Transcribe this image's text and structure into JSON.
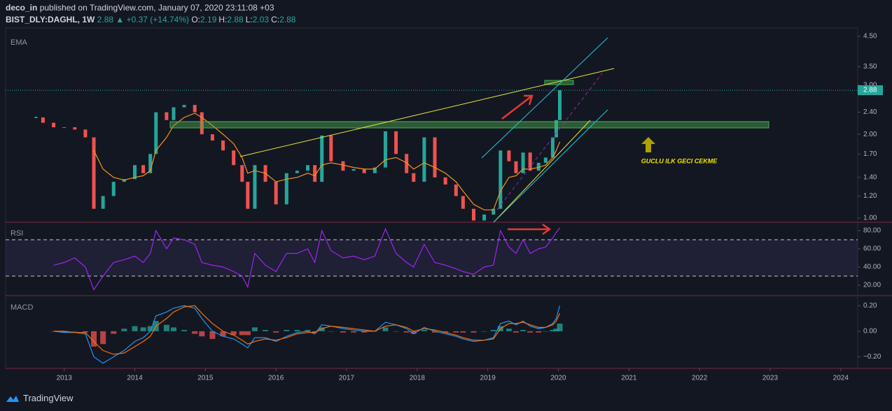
{
  "header": {
    "author": "deco_in",
    "published": "published on TradingView.com, January 07, 2020 23:11:08 +03",
    "symbol": "BIST_DLY:DAGHL, 1W",
    "last": "2.88",
    "change": "▲ +0.37 (+14.74%)",
    "ohlc": [
      "O:",
      "2.19",
      "H:",
      "2.88",
      "L:",
      "2.03",
      "C:",
      "2.88"
    ]
  },
  "footer": "TradingView",
  "chart_data": [
    {
      "type": "candlestick",
      "label": "EMA",
      "log": true,
      "x": [
        2012.6,
        2012.7,
        2012.85,
        2013.0,
        2013.15,
        2013.3,
        2013.42,
        2013.55,
        2013.7,
        2013.85,
        2014.0,
        2014.12,
        2014.22,
        2014.3,
        2014.45,
        2014.55,
        2014.7,
        2014.85,
        2014.95,
        2015.1,
        2015.25,
        2015.4,
        2015.52,
        2015.6,
        2015.7,
        2015.85,
        2016.0,
        2016.15,
        2016.3,
        2016.45,
        2016.55,
        2016.65,
        2016.78,
        2016.95,
        2017.1,
        2017.25,
        2017.4,
        2017.55,
        2017.7,
        2017.85,
        2017.95,
        2018.1,
        2018.25,
        2018.4,
        2018.55,
        2018.65,
        2018.8,
        2018.95,
        2019.08,
        2019.18,
        2019.3,
        2019.4,
        2019.5,
        2019.6,
        2019.72,
        2019.82,
        2019.92,
        2019.97,
        2020.02
      ],
      "series": [
        {
          "color": "#26a69a",
          "down_color": "#ef5350",
          "values": [
            2.3,
            2.2,
            2.12,
            2.12,
            2.08,
            1.95,
            1.08,
            1.2,
            1.35,
            1.38,
            1.55,
            1.45,
            1.7,
            2.4,
            2.25,
            2.5,
            2.55,
            2.4,
            2.0,
            1.9,
            1.75,
            1.55,
            1.35,
            1.08,
            1.55,
            1.35,
            1.12,
            1.45,
            1.48,
            1.55,
            1.35,
            1.98,
            1.6,
            1.48,
            1.5,
            1.45,
            1.52,
            2.05,
            1.7,
            1.45,
            1.35,
            1.95,
            1.4,
            1.32,
            1.2,
            1.08,
            0.98,
            1.03,
            1.08,
            1.75,
            1.6,
            1.45,
            1.72,
            1.48,
            1.58,
            1.65,
            1.95,
            2.25,
            2.88
          ]
        },
        {
          "color": "#f7931a",
          "values": [
            null,
            null,
            null,
            null,
            null,
            null,
            1.75,
            1.5,
            1.4,
            1.37,
            1.4,
            1.42,
            1.48,
            1.75,
            1.95,
            2.15,
            2.3,
            2.38,
            2.3,
            2.15,
            2.0,
            1.85,
            1.65,
            1.45,
            1.48,
            1.45,
            1.35,
            1.38,
            1.4,
            1.45,
            1.42,
            1.55,
            1.58,
            1.55,
            1.52,
            1.5,
            1.5,
            1.62,
            1.65,
            1.58,
            1.5,
            1.58,
            1.52,
            1.45,
            1.35,
            1.25,
            1.12,
            1.07,
            1.07,
            1.25,
            1.4,
            1.42,
            1.5,
            1.5,
            1.52,
            1.55,
            1.65,
            1.75,
            1.88
          ]
        }
      ],
      "xlim": [
        2012.17,
        2024.24
      ],
      "xticks": [
        2013,
        2014,
        2015,
        2016,
        2017,
        2018,
        2019,
        2020,
        2021,
        2022,
        2023,
        2024
      ],
      "ylim": [
        0.966,
        4.82
      ],
      "yticks": [
        {
          "value": 1,
          "label": "1.00"
        },
        {
          "value": 1.2,
          "label": "1.20"
        },
        {
          "value": 1.4,
          "label": "1.40"
        },
        {
          "value": 1.7,
          "label": "1.70"
        },
        {
          "value": 2,
          "label": "2.00"
        },
        {
          "value": 2.4,
          "label": "2.40"
        },
        {
          "value": 3,
          "label": "3.00"
        },
        {
          "value": 3.5,
          "label": "3.50"
        },
        {
          "value": 4.5,
          "label": "4.50"
        }
      ],
      "last_price": 2.88,
      "annotation": "GUCLU ILK GECI CEKME"
    },
    {
      "type": "line",
      "label": "RSI",
      "series": [
        {
          "color": "#9c27f0",
          "values": [
            null,
            null,
            42,
            45,
            50,
            40,
            15,
            30,
            45,
            48,
            52,
            45,
            55,
            80,
            60,
            72,
            70,
            65,
            45,
            42,
            40,
            35,
            30,
            18,
            55,
            42,
            35,
            55,
            55,
            60,
            45,
            80,
            58,
            50,
            52,
            48,
            52,
            82,
            55,
            45,
            40,
            65,
            45,
            42,
            38,
            35,
            32,
            40,
            42,
            80,
            62,
            55,
            70,
            55,
            60,
            62,
            72,
            78,
            83
          ]
        }
      ],
      "levels": [
        70,
        30
      ],
      "ylim": [
        8.5,
        89.2
      ],
      "yticks": [
        {
          "value": 20,
          "label": "20.00"
        },
        {
          "value": 40,
          "label": "40.00"
        },
        {
          "value": 60,
          "label": "60.00"
        },
        {
          "value": 80,
          "label": "80.00"
        }
      ]
    },
    {
      "type": "macd",
      "label": "MACD",
      "series": [
        {
          "color": "#2196f3",
          "values": [
            null,
            null,
            0.0,
            -0.01,
            -0.01,
            -0.02,
            -0.2,
            -0.25,
            -0.2,
            -0.15,
            -0.08,
            -0.05,
            0.0,
            0.12,
            0.15,
            0.18,
            0.2,
            0.18,
            0.1,
            0.0,
            -0.04,
            -0.06,
            -0.1,
            -0.13,
            -0.05,
            -0.05,
            -0.08,
            -0.04,
            -0.01,
            0.0,
            -0.02,
            0.05,
            0.04,
            0.02,
            0.01,
            0.0,
            0.0,
            0.07,
            0.05,
            0.02,
            -0.02,
            0.03,
            0.0,
            -0.02,
            -0.04,
            -0.06,
            -0.08,
            -0.07,
            -0.05,
            0.06,
            0.08,
            0.05,
            0.08,
            0.04,
            0.02,
            0.03,
            0.06,
            0.1,
            0.2
          ]
        },
        {
          "color": "#ff6d00",
          "values": [
            null,
            null,
            0.0,
            0.0,
            -0.01,
            -0.01,
            -0.08,
            -0.15,
            -0.18,
            -0.17,
            -0.12,
            -0.08,
            -0.04,
            0.04,
            0.1,
            0.15,
            0.19,
            0.2,
            0.14,
            0.06,
            0.0,
            -0.03,
            -0.07,
            -0.1,
            -0.08,
            -0.06,
            -0.07,
            -0.05,
            -0.02,
            -0.01,
            -0.01,
            0.02,
            0.04,
            0.03,
            0.02,
            0.01,
            0.0,
            0.04,
            0.05,
            0.03,
            0.0,
            0.02,
            0.01,
            -0.01,
            -0.03,
            -0.05,
            -0.07,
            -0.07,
            -0.06,
            0.02,
            0.06,
            0.06,
            0.07,
            0.05,
            0.03,
            0.03,
            0.05,
            0.08,
            0.14
          ]
        },
        {
          "color": "#26a69a",
          "down_color": "#ef5350",
          "values": [
            null,
            null,
            0.0,
            -0.01,
            0.0,
            -0.01,
            -0.12,
            -0.1,
            -0.02,
            0.02,
            0.04,
            0.03,
            0.04,
            0.08,
            0.05,
            0.03,
            0.01,
            -0.02,
            -0.04,
            -0.06,
            -0.04,
            -0.03,
            -0.03,
            -0.03,
            0.03,
            0.01,
            -0.01,
            0.01,
            0.01,
            0.01,
            -0.01,
            0.03,
            0.0,
            -0.01,
            -0.01,
            -0.01,
            0.0,
            0.03,
            0.0,
            -0.01,
            -0.02,
            0.01,
            -0.01,
            -0.01,
            -0.01,
            -0.01,
            -0.01,
            0.0,
            0.01,
            0.04,
            0.02,
            -0.01,
            0.01,
            -0.01,
            -0.01,
            0.0,
            0.01,
            0.02,
            0.06
          ]
        }
      ],
      "ylim": [
        -0.29,
        0.278
      ],
      "yticks": [
        {
          "value": -0.2,
          "label": "−0.20"
        },
        {
          "value": 0,
          "label": "0.00"
        },
        {
          "value": 0.2,
          "label": "0.20"
        }
      ]
    }
  ]
}
